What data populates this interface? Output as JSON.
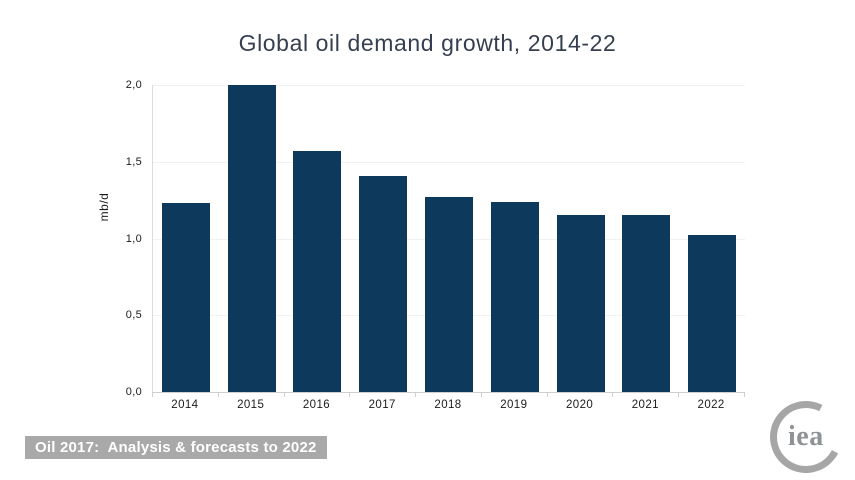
{
  "chart_data": {
    "type": "bar",
    "title": "Global oil demand growth, 2014-22",
    "xlabel": "",
    "ylabel": "mb/d",
    "categories": [
      "2014",
      "2015",
      "2016",
      "2017",
      "2018",
      "2019",
      "2020",
      "2021",
      "2022"
    ],
    "values": [
      1.23,
      2.0,
      1.57,
      1.41,
      1.27,
      1.24,
      1.15,
      1.15,
      1.02
    ],
    "ylim": [
      0,
      2.0
    ],
    "yticks": [
      {
        "value": 0.0,
        "label": "0,0"
      },
      {
        "value": 0.5,
        "label": "0,5"
      },
      {
        "value": 1.0,
        "label": "1,0"
      },
      {
        "value": 1.5,
        "label": "1,5"
      },
      {
        "value": 2.0,
        "label": "2,0"
      }
    ],
    "grid": "horizontal",
    "legend": "none",
    "bar_color": "#0d3a5c"
  },
  "footer": {
    "badge_text": "Oil 2017:  Analysis & forecasts to 2022",
    "badge_bg": "#a9a9a9",
    "logo_text": "iea"
  }
}
